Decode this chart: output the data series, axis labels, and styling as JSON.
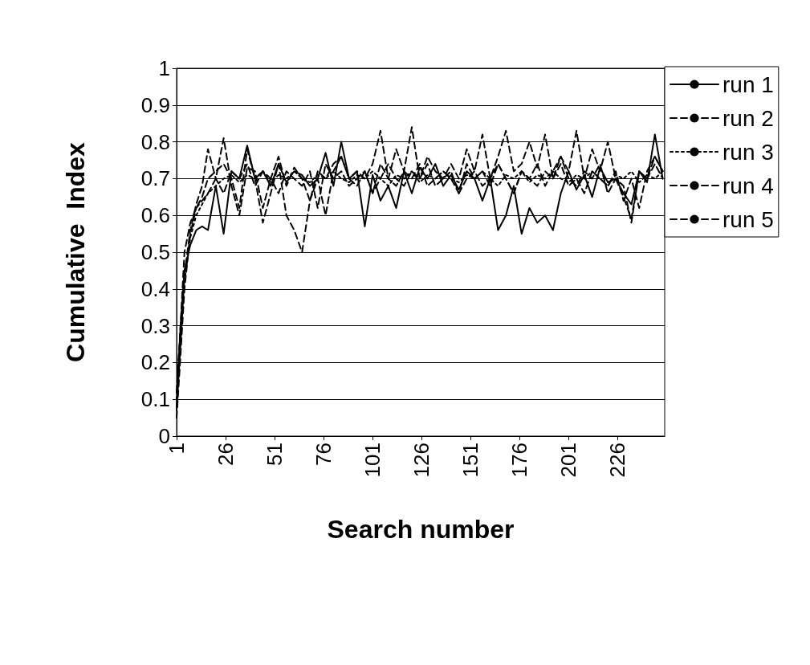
{
  "chart_data": {
    "type": "line",
    "xlabel": "Search number",
    "ylabel": "Cumulative  Index",
    "x": [
      1,
      3,
      5,
      8,
      11,
      14,
      17,
      21,
      25,
      29,
      33,
      37,
      41,
      45,
      49,
      53,
      57,
      61,
      65,
      69,
      73,
      77,
      81,
      85,
      89,
      93,
      97,
      101,
      105,
      109,
      113,
      117,
      121,
      125,
      129,
      133,
      137,
      141,
      145,
      149,
      153,
      157,
      161,
      165,
      169,
      173,
      177,
      181,
      185,
      189,
      193,
      197,
      201,
      205,
      209,
      213,
      217,
      221,
      225,
      229,
      233,
      237,
      241,
      245,
      249
    ],
    "xlim": [
      1,
      250
    ],
    "xticks": [
      1,
      26,
      51,
      76,
      101,
      126,
      151,
      176,
      201,
      226
    ],
    "ylim": [
      0,
      1
    ],
    "yticks": [
      0,
      0.1,
      0.2,
      0.3,
      0.4,
      0.5,
      0.6,
      0.7,
      0.8,
      0.9,
      1
    ],
    "grid": "y",
    "legend": "top right",
    "marker": "none",
    "series": [
      {
        "name": "run 1",
        "color": "#000000",
        "line_style": "solid",
        "values": [
          0.08,
          0.3,
          0.45,
          0.52,
          0.56,
          0.57,
          0.56,
          0.68,
          0.55,
          0.72,
          0.7,
          0.79,
          0.7,
          0.72,
          0.68,
          0.74,
          0.69,
          0.72,
          0.71,
          0.68,
          0.7,
          0.77,
          0.68,
          0.8,
          0.7,
          0.72,
          0.57,
          0.71,
          0.64,
          0.68,
          0.62,
          0.72,
          0.66,
          0.73,
          0.7,
          0.74,
          0.68,
          0.71,
          0.67,
          0.72,
          0.7,
          0.64,
          0.7,
          0.56,
          0.6,
          0.68,
          0.55,
          0.62,
          0.58,
          0.6,
          0.56,
          0.66,
          0.72,
          0.67,
          0.71,
          0.65,
          0.73,
          0.69,
          0.7,
          0.66,
          0.63,
          0.72,
          0.69,
          0.82,
          0.7
        ]
      },
      {
        "name": "run 2",
        "color": "#000000",
        "line_style": "dashed",
        "values": [
          0.05,
          0.22,
          0.4,
          0.55,
          0.62,
          0.64,
          0.66,
          0.7,
          0.81,
          0.68,
          0.6,
          0.73,
          0.72,
          0.62,
          0.7,
          0.76,
          0.68,
          0.73,
          0.7,
          0.64,
          0.72,
          0.7,
          0.74,
          0.76,
          0.7,
          0.72,
          0.7,
          0.74,
          0.83,
          0.7,
          0.78,
          0.72,
          0.84,
          0.7,
          0.76,
          0.72,
          0.7,
          0.74,
          0.7,
          0.78,
          0.72,
          0.82,
          0.7,
          0.76,
          0.83,
          0.72,
          0.74,
          0.8,
          0.73,
          0.82,
          0.7,
          0.76,
          0.72,
          0.83,
          0.7,
          0.78,
          0.72,
          0.8,
          0.7,
          0.65,
          0.59,
          0.72,
          0.7,
          0.76,
          0.72
        ]
      },
      {
        "name": "run 3",
        "color": "#000000",
        "line_style": "dotted",
        "values": [
          0.1,
          0.28,
          0.42,
          0.54,
          0.6,
          0.63,
          0.66,
          0.68,
          0.7,
          0.71,
          0.69,
          0.71,
          0.7,
          0.72,
          0.69,
          0.71,
          0.7,
          0.72,
          0.7,
          0.69,
          0.71,
          0.7,
          0.72,
          0.7,
          0.69,
          0.71,
          0.7,
          0.72,
          0.7,
          0.68,
          0.71,
          0.7,
          0.72,
          0.69,
          0.71,
          0.7,
          0.72,
          0.7,
          0.69,
          0.71,
          0.7,
          0.72,
          0.7,
          0.68,
          0.71,
          0.7,
          0.72,
          0.69,
          0.71,
          0.7,
          0.72,
          0.7,
          0.69,
          0.71,
          0.7,
          0.72,
          0.7,
          0.68,
          0.71,
          0.7,
          0.72,
          0.69,
          0.71,
          0.7,
          0.72
        ]
      },
      {
        "name": "run 4",
        "color": "#000000",
        "line_style": "dashed",
        "values": [
          0.12,
          0.3,
          0.5,
          0.58,
          0.62,
          0.65,
          0.7,
          0.72,
          0.74,
          0.7,
          0.62,
          0.78,
          0.7,
          0.58,
          0.66,
          0.74,
          0.6,
          0.56,
          0.5,
          0.64,
          0.7,
          0.6,
          0.72,
          0.76,
          0.7,
          0.68,
          0.72,
          0.66,
          0.74,
          0.7,
          0.68,
          0.72,
          0.7,
          0.74,
          0.68,
          0.7,
          0.72,
          0.7,
          0.66,
          0.74,
          0.7,
          0.72,
          0.68,
          0.74,
          0.7,
          0.66,
          0.72,
          0.7,
          0.74,
          0.68,
          0.72,
          0.76,
          0.7,
          0.68,
          0.72,
          0.7,
          0.74,
          0.66,
          0.7,
          0.68,
          0.58,
          0.72,
          0.7,
          0.74,
          0.7
        ]
      },
      {
        "name": "run 5",
        "color": "#000000",
        "line_style": "dashed",
        "values": [
          0.07,
          0.25,
          0.44,
          0.56,
          0.63,
          0.68,
          0.78,
          0.7,
          0.66,
          0.72,
          0.7,
          0.74,
          0.68,
          0.72,
          0.7,
          0.66,
          0.72,
          0.7,
          0.68,
          0.72,
          0.62,
          0.74,
          0.7,
          0.72,
          0.68,
          0.7,
          0.72,
          0.66,
          0.7,
          0.74,
          0.7,
          0.68,
          0.72,
          0.7,
          0.74,
          0.68,
          0.7,
          0.72,
          0.66,
          0.7,
          0.72,
          0.68,
          0.7,
          0.74,
          0.7,
          0.66,
          0.72,
          0.7,
          0.68,
          0.72,
          0.7,
          0.74,
          0.68,
          0.7,
          0.66,
          0.72,
          0.7,
          0.68,
          0.72,
          0.64,
          0.7,
          0.62,
          0.72,
          0.76,
          0.72
        ]
      }
    ]
  }
}
